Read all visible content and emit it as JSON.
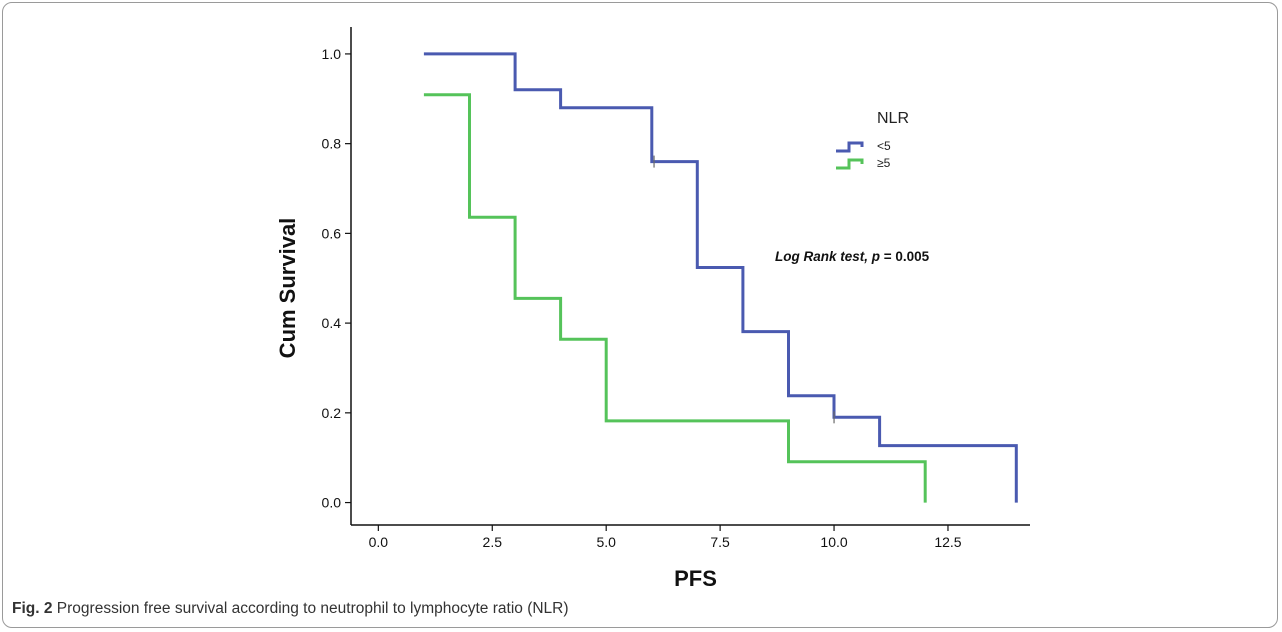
{
  "figure": {
    "label": "Fig. 2",
    "caption": "Progression free survival according to neutrophil to lymphocyte ratio (NLR)"
  },
  "chart_data": {
    "type": "line",
    "step": true,
    "xlabel": "PFS",
    "ylabel": "Cum Survival",
    "xlim": [
      -0.6,
      14.3
    ],
    "ylim": [
      -0.05,
      1.06
    ],
    "xticks": [
      0.0,
      2.5,
      5.0,
      7.5,
      10.0,
      12.5
    ],
    "xtick_labels": [
      "0.0",
      "2.5",
      "5.0",
      "7.5",
      "10.0",
      "12.5"
    ],
    "yticks": [
      0.0,
      0.2,
      0.4,
      0.6,
      0.8,
      1.0
    ],
    "ytick_labels": [
      "0.0",
      "0.2",
      "0.4",
      "0.6",
      "0.8",
      "1.0"
    ],
    "grid": false,
    "legend": {
      "title": "NLR",
      "position": "top-right"
    },
    "annotation": {
      "italic_bold_prefix": "Log Rank test, ",
      "p_symbol": "p",
      "p_value": " = 0.005"
    },
    "series": [
      {
        "name": "<5",
        "color": "#4a5ab0",
        "x": [
          1,
          3,
          3,
          4,
          4,
          6,
          6,
          7,
          7,
          8,
          8,
          9,
          9,
          10,
          10,
          11,
          11,
          14,
          14
        ],
        "y": [
          1.0,
          1.0,
          0.92,
          0.92,
          0.88,
          0.88,
          0.76,
          0.76,
          0.524,
          0.524,
          0.381,
          0.381,
          0.238,
          0.238,
          0.19,
          0.19,
          0.127,
          0.127,
          0.0
        ],
        "censored": [
          [
            6.05,
            0.76
          ],
          [
            10.0,
            0.19
          ]
        ]
      },
      {
        "name": "≥5",
        "color": "#55c35a",
        "x": [
          1,
          2,
          2,
          3,
          3,
          4,
          4,
          5,
          5,
          9,
          9,
          12,
          12
        ],
        "y": [
          0.909,
          0.909,
          0.636,
          0.636,
          0.455,
          0.455,
          0.364,
          0.364,
          0.182,
          0.182,
          0.091,
          0.091,
          0.0
        ],
        "censored": []
      }
    ]
  }
}
